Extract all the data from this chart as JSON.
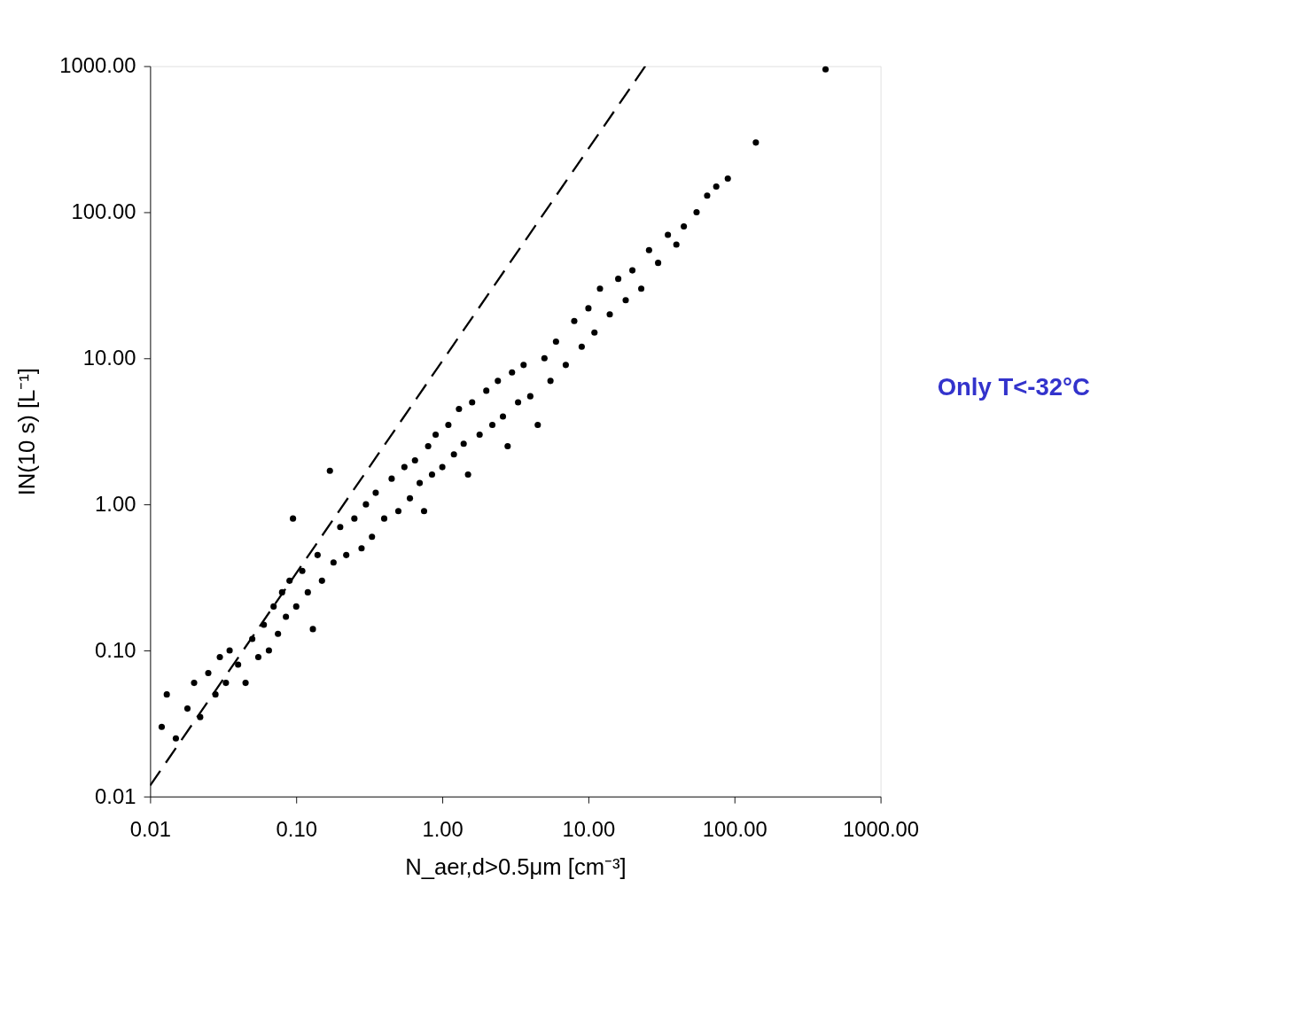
{
  "chart_data": {
    "type": "scatter",
    "xlabel": "N_aer,d>0.5μm [cm⁻³]",
    "ylabel": "IN(10 s) [L⁻¹]",
    "log": "xy",
    "grid": false,
    "xlim": [
      0.01,
      1000
    ],
    "ylim": [
      0.01,
      1000
    ],
    "xticks": [
      0.01,
      {
        "value": 0.1,
        "label": "0.10"
      },
      {
        "value": 1,
        "label": "1.00"
      },
      {
        "value": 10,
        "label": "10.00"
      },
      {
        "value": 100,
        "label": "100.00"
      },
      {
        "value": 1000,
        "label": "1000.00"
      }
    ],
    "yticks": [
      0.01,
      {
        "value": 0.1,
        "label": "0.10"
      },
      {
        "value": 1,
        "label": "1.00"
      },
      {
        "value": 10,
        "label": "10.00"
      },
      {
        "value": 100,
        "label": "100.00"
      },
      {
        "value": 1000,
        "label": "1000.00"
      }
    ],
    "annotations": [
      "Only T<-32°C"
    ],
    "series": [
      {
        "type": "scatter",
        "color": "#000000",
        "marker": "circle",
        "x": [
          0.012,
          0.013,
          0.015,
          0.018,
          0.02,
          0.022,
          0.025,
          0.028,
          0.03,
          0.033,
          0.035,
          0.04,
          0.045,
          0.05,
          0.055,
          0.06,
          0.065,
          0.07,
          0.075,
          0.08,
          0.085,
          0.09,
          0.095,
          0.1,
          0.11,
          0.12,
          0.13,
          0.14,
          0.15,
          0.17,
          0.18,
          0.2,
          0.22,
          0.25,
          0.28,
          0.3,
          0.33,
          0.35,
          0.4,
          0.45,
          0.5,
          0.55,
          0.6,
          0.65,
          0.7,
          0.75,
          0.8,
          0.85,
          0.9,
          1.0,
          1.1,
          1.2,
          1.3,
          1.4,
          1.5,
          1.6,
          1.8,
          2.0,
          2.2,
          2.4,
          2.6,
          2.8,
          3.0,
          3.3,
          3.6,
          4.0,
          4.5,
          5.0,
          5.5,
          6.0,
          7.0,
          8.0,
          9.0,
          10,
          11,
          12,
          14,
          16,
          18,
          20,
          23,
          26,
          30,
          35,
          40,
          45,
          55,
          65,
          75,
          90,
          140,
          420
        ],
        "values": [
          0.03,
          0.05,
          0.025,
          0.04,
          0.06,
          0.035,
          0.07,
          0.05,
          0.09,
          0.06,
          0.1,
          0.08,
          0.06,
          0.12,
          0.09,
          0.15,
          0.1,
          0.2,
          0.13,
          0.25,
          0.17,
          0.3,
          0.8,
          0.2,
          0.35,
          0.25,
          0.14,
          0.45,
          0.3,
          1.7,
          0.4,
          0.7,
          0.45,
          0.8,
          0.5,
          1.0,
          0.6,
          1.2,
          0.8,
          1.5,
          0.9,
          1.8,
          1.1,
          2.0,
          1.4,
          0.9,
          2.5,
          1.6,
          3.0,
          1.8,
          3.5,
          2.2,
          4.5,
          2.6,
          1.6,
          5.0,
          3.0,
          6.0,
          3.5,
          7.0,
          4.0,
          2.5,
          8.0,
          5.0,
          9.0,
          5.5,
          3.5,
          10,
          7,
          13,
          9,
          18,
          12,
          22,
          15,
          30,
          20,
          35,
          25,
          40,
          30,
          55,
          45,
          70,
          60,
          80,
          100,
          130,
          150,
          170,
          300,
          950
        ]
      },
      {
        "type": "line",
        "color": "#000000",
        "line_style": "dashed",
        "marker": "none",
        "x": [
          0.01,
          24.5
        ],
        "values": [
          0.0119,
          1000
        ]
      }
    ]
  }
}
